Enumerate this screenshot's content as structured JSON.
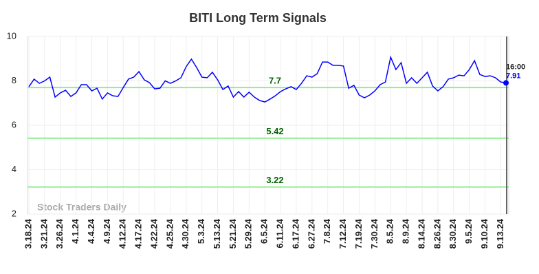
{
  "chart_data": {
    "type": "line",
    "title": "BITI Long Term Signals",
    "watermark": "Stock Traders Daily",
    "annotation": "16:00",
    "categories": [
      "3.18.24",
      null,
      null,
      "3.21.24",
      null,
      null,
      "3.26.24",
      null,
      null,
      "4.1.24",
      null,
      null,
      "4.4.24",
      null,
      null,
      "4.9.24",
      null,
      null,
      "4.12.24",
      null,
      null,
      "4.17.24",
      null,
      null,
      "4.22.24",
      null,
      null,
      "4.25.24",
      null,
      null,
      "4.30.24",
      null,
      null,
      "5.3.24",
      null,
      null,
      "5.13.24",
      null,
      null,
      "5.21.24",
      null,
      null,
      "5.29.24",
      null,
      null,
      "6.5.24",
      null,
      null,
      "6.11.24",
      null,
      null,
      "6.17.24",
      null,
      null,
      "6.27.24",
      null,
      null,
      "7.8.24",
      null,
      null,
      "7.12.24",
      null,
      null,
      "7.19.24",
      null,
      null,
      "7.30.24",
      null,
      null,
      "8.5.24",
      null,
      null,
      "8.9.24",
      null,
      null,
      "8.14.24",
      null,
      null,
      "8.26.24",
      null,
      null,
      "8.30.24",
      null,
      null,
      "9.5.24",
      null,
      null,
      "9.10.24",
      null,
      null,
      "9.13.24",
      null
    ],
    "series": [
      {
        "color": "#0000ff",
        "values": [
          7.74,
          8.08,
          7.89,
          8.0,
          8.17,
          7.27,
          7.46,
          7.58,
          7.3,
          7.46,
          7.83,
          7.83,
          7.55,
          7.67,
          7.18,
          7.46,
          7.33,
          7.3,
          7.7,
          8.08,
          8.17,
          8.42,
          8.05,
          7.92,
          7.64,
          7.67,
          8.0,
          7.89,
          8.0,
          8.14,
          8.64,
          8.98,
          8.6,
          8.17,
          8.14,
          8.39,
          8.05,
          7.61,
          7.77,
          7.27,
          7.52,
          7.27,
          7.49,
          7.27,
          7.12,
          7.05,
          7.18,
          7.33,
          7.52,
          7.64,
          7.74,
          7.61,
          7.89,
          8.23,
          8.17,
          8.33,
          8.85,
          8.85,
          8.7,
          8.7,
          8.67,
          7.67,
          7.8,
          7.36,
          7.24,
          7.36,
          7.55,
          7.83,
          7.95,
          9.07,
          8.51,
          8.82,
          7.89,
          8.14,
          7.89,
          8.14,
          8.39,
          7.77,
          7.55,
          7.74,
          8.08,
          8.14,
          8.26,
          8.23,
          8.51,
          8.91,
          8.29,
          8.2,
          8.23,
          8.14,
          7.95,
          7.91
        ]
      }
    ],
    "hlines": [
      {
        "value": 7.7,
        "color": "#90ee90"
      },
      {
        "value": 5.42,
        "color": "#90ee90"
      },
      {
        "value": 3.22,
        "color": "#90ee90"
      }
    ],
    "ylim": [
      2,
      10
    ],
    "yticks": [
      2,
      4,
      6,
      8,
      10
    ],
    "grid": true
  }
}
